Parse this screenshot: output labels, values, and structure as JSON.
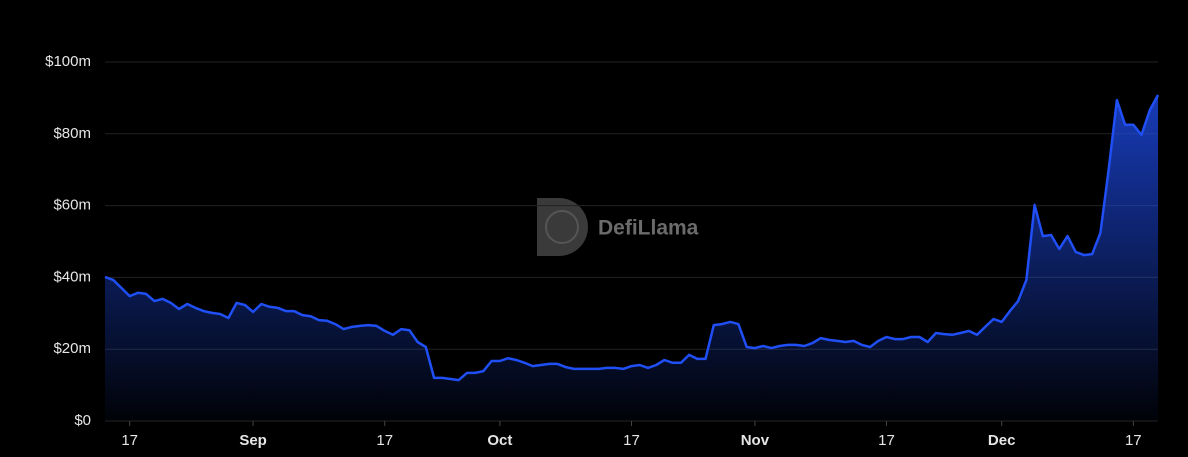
{
  "chart_data": {
    "type": "area",
    "watermark": "DefiLlama",
    "color": "#1f4ff5",
    "grid": true,
    "xlim": [
      226,
      354
    ],
    "ylim": [
      0,
      100
    ],
    "yticks": [
      {
        "value": 0,
        "label": "$0"
      },
      {
        "value": 20,
        "label": "$20m"
      },
      {
        "value": 40,
        "label": "$40m"
      },
      {
        "value": 60,
        "label": "$60m"
      },
      {
        "value": 80,
        "label": "$80m"
      },
      {
        "value": 100,
        "label": "$100m"
      }
    ],
    "xticks": [
      {
        "value": 229,
        "label": "17"
      },
      {
        "value": 244,
        "label": "Sep"
      },
      {
        "value": 260,
        "label": "17"
      },
      {
        "value": 274,
        "label": "Oct"
      },
      {
        "value": 290,
        "label": "17"
      },
      {
        "value": 305,
        "label": "Nov"
      },
      {
        "value": 321,
        "label": "17"
      },
      {
        "value": 335,
        "label": "Dec"
      },
      {
        "value": 351,
        "label": "17"
      }
    ],
    "x": [
      226,
      227,
      229,
      230,
      231,
      232,
      233,
      234,
      235,
      236,
      237,
      238,
      239,
      240,
      241,
      242,
      243,
      244,
      245,
      246,
      247,
      248,
      249,
      250,
      251,
      252,
      253,
      254,
      255,
      256,
      257,
      258,
      259,
      260,
      261,
      262,
      263,
      264,
      265,
      266,
      267,
      268,
      269,
      270,
      271,
      272,
      273,
      274,
      275,
      276,
      277,
      278,
      279,
      280,
      281,
      282,
      283,
      284,
      285,
      286,
      287,
      288,
      289,
      290,
      291,
      292,
      293,
      294,
      295,
      296,
      297,
      298,
      299,
      300,
      301,
      302,
      303,
      304,
      305,
      306,
      307,
      308,
      309,
      310,
      311,
      312,
      313,
      314,
      315,
      316,
      317,
      318,
      319,
      320,
      321,
      322,
      323,
      324,
      325,
      326,
      327,
      328,
      329,
      330,
      331,
      332,
      333,
      334,
      335,
      336,
      337,
      338,
      339,
      340,
      341,
      342,
      343,
      344,
      345,
      346,
      347,
      348,
      349,
      350,
      351,
      352,
      353,
      354
    ],
    "values": [
      40.1,
      39.3,
      34.8,
      35.7,
      35.4,
      33.4,
      34,
      32.9,
      31.2,
      32.6,
      31.5,
      30.6,
      30.1,
      29.8,
      28.7,
      32.9,
      32.3,
      30.4,
      32.6,
      31.8,
      31.5,
      30.6,
      30.6,
      29.5,
      29.2,
      28.1,
      27.9,
      27,
      25.6,
      26.2,
      26.5,
      26.7,
      26.5,
      25.1,
      24,
      25.6,
      25.3,
      22,
      20.6,
      12,
      12,
      11.7,
      11.4,
      13.4,
      13.4,
      13.9,
      16.7,
      16.7,
      17.5,
      17,
      16.2,
      15.3,
      15.6,
      15.9,
      15.9,
      15,
      14.5,
      14.5,
      14.5,
      14.5,
      14.8,
      14.8,
      14.5,
      15.3,
      15.6,
      14.8,
      15.6,
      17,
      16.2,
      16.2,
      18.4,
      17.3,
      17.3,
      26.7,
      27,
      27.6,
      27,
      20.6,
      20.3,
      20.9,
      20.3,
      20.9,
      21.2,
      21.2,
      20.9,
      21.7,
      23.1,
      22.6,
      22.3,
      22,
      22.3,
      21.2,
      20.6,
      22.3,
      23.4,
      22.8,
      22.8,
      23.4,
      23.4,
      22,
      24.5,
      24.2,
      24,
      24.5,
      25.1,
      24,
      26.2,
      28.4,
      27.6,
      30.6,
      33.4,
      39.3,
      60.2,
      51.5,
      51.8,
      47.9,
      51.5,
      47.1,
      46.2,
      46.5,
      52.4,
      69.9,
      89.4,
      82.5,
      82.5,
      79.7,
      86.6,
      90.8
    ]
  }
}
